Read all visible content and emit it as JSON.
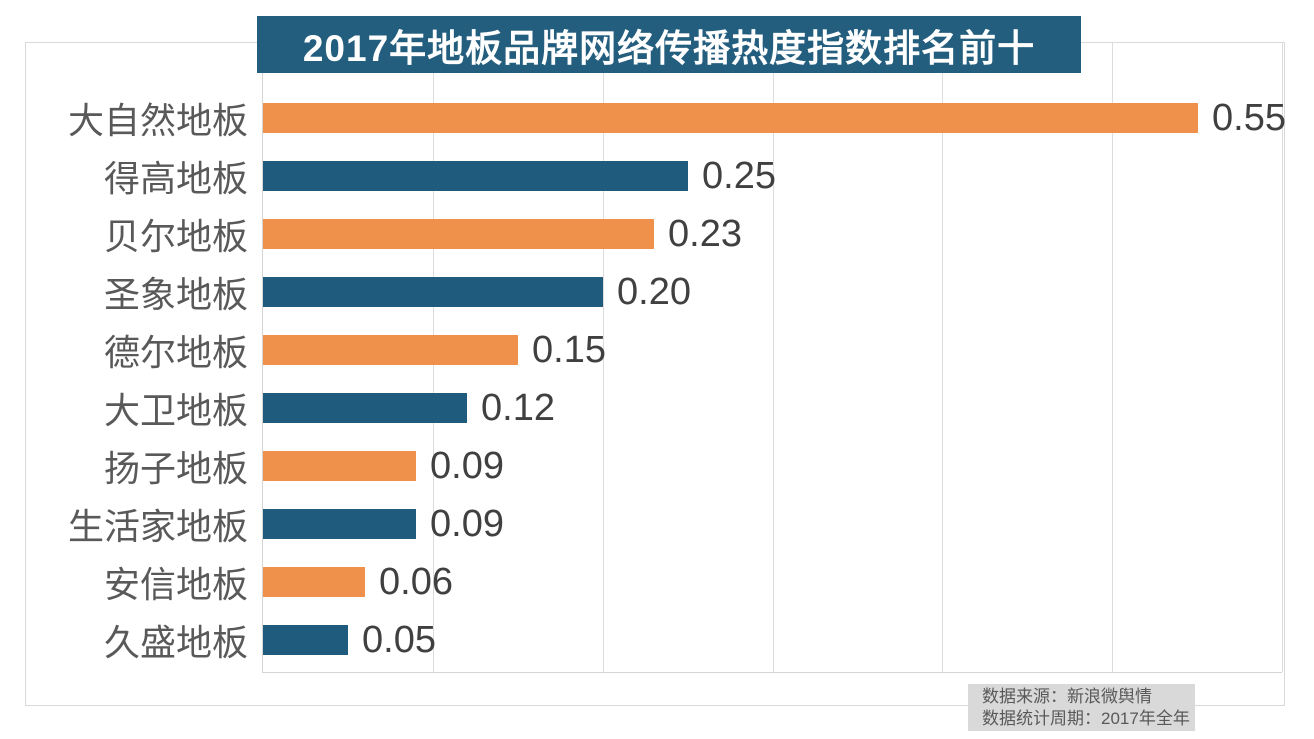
{
  "title": "2017年地板品牌网络传播热度指数排名前十",
  "chart_data": {
    "type": "bar",
    "orientation": "horizontal",
    "title": "2017年地板品牌网络传播热度指数排名前十",
    "categories": [
      "大自然地板",
      "得高地板",
      "贝尔地板",
      "圣象地板",
      "德尔地板",
      "大卫地板",
      "扬子地板",
      "生活家地板",
      "安信地板",
      "久盛地板"
    ],
    "values": [
      0.55,
      0.25,
      0.23,
      0.2,
      0.15,
      0.12,
      0.09,
      0.09,
      0.06,
      0.05
    ],
    "value_labels": [
      "0.55",
      "0.25",
      "0.23",
      "0.20",
      "0.15",
      "0.12",
      "0.09",
      "0.09",
      "0.06",
      "0.05"
    ],
    "bar_colors": [
      "#F0914B",
      "#1E5B7D",
      "#F0914B",
      "#1E5B7D",
      "#F0914B",
      "#1E5B7D",
      "#F0914B",
      "#1E5B7D",
      "#F0914B",
      "#1E5B7D"
    ],
    "xlabel": "",
    "ylabel": "",
    "xlim": [
      0,
      0.6
    ],
    "gridline_interval": 0.1,
    "grid": "vertical-gridlines-only",
    "legend": "none",
    "value_labels_position": "end-of-bar"
  },
  "footer": {
    "source_line": "数据来源：新浪微舆情",
    "period_line": "数据统计周期：2017年全年"
  },
  "colors": {
    "title_background": "#245E7E",
    "title_text": "#FFFFFF",
    "orange_bar": "#F0914B",
    "blue_bar": "#1E5B7D",
    "category_label_text": "#595959",
    "value_label_text": "#404040",
    "gridline": "#DCDCDC",
    "frame_border": "#D9D9D9",
    "footer_background": "#D9D9D9",
    "footer_text": "#595959",
    "page_background": "#FFFFFF"
  }
}
